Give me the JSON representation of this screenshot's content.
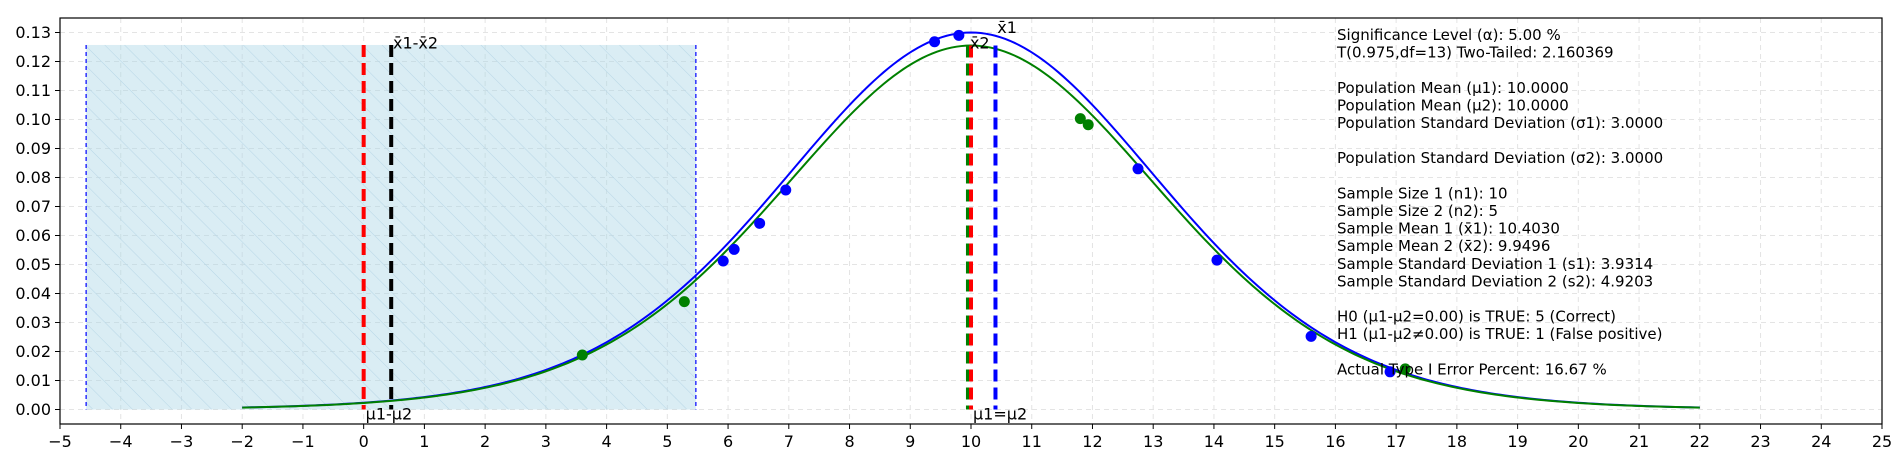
{
  "chart_data": {
    "type": "line",
    "xlim": [
      -5,
      25
    ],
    "ylim": [
      -0.005,
      0.135
    ],
    "x_ticks": [
      -5,
      -4,
      -3,
      -2,
      -1,
      0,
      1,
      2,
      3,
      4,
      5,
      6,
      7,
      8,
      9,
      10,
      11,
      12,
      13,
      14,
      15,
      16,
      17,
      18,
      19,
      20,
      21,
      22,
      23,
      24,
      25
    ],
    "y_ticks": [
      0.0,
      0.01,
      0.02,
      0.03,
      0.04,
      0.05,
      0.06,
      0.07,
      0.08,
      0.09,
      0.1,
      0.11,
      0.12,
      0.13
    ],
    "grid": true,
    "colors": {
      "series1": "#0000ff",
      "series2": "#008000",
      "region_fill": "#add8e6",
      "region_border": "#0000ff",
      "diff_line": "#000000",
      "mean_diff_line": "#ff0000",
      "mean_line": "#ff0000"
    },
    "series": [
      {
        "color": "#0000ff",
        "curve": {
          "x_start": -2,
          "x_end": 22,
          "peak_x": 10,
          "peak_y": 0.13
        },
        "points": [
          {
            "x": 9.4,
            "y": 0.1268
          },
          {
            "x": 9.8,
            "y": 0.129
          },
          {
            "x": 6.95,
            "y": 0.0757
          },
          {
            "x": 6.52,
            "y": 0.0642
          },
          {
            "x": 6.1,
            "y": 0.0552
          },
          {
            "x": 5.92,
            "y": 0.0512
          },
          {
            "x": 12.75,
            "y": 0.083
          },
          {
            "x": 14.05,
            "y": 0.0515
          },
          {
            "x": 15.6,
            "y": 0.0252
          },
          {
            "x": 16.9,
            "y": 0.013
          }
        ]
      },
      {
        "color": "#008000",
        "curve": {
          "x_start": -2,
          "x_end": 22,
          "peak_x": 10,
          "peak_y": 0.1255
        },
        "points": [
          {
            "x": 3.6,
            "y": 0.0188
          },
          {
            "x": 5.28,
            "y": 0.0372
          },
          {
            "x": 11.8,
            "y": 0.1003
          },
          {
            "x": 11.93,
            "y": 0.0982
          },
          {
            "x": 17.15,
            "y": 0.014
          }
        ]
      }
    ],
    "shaded_region": {
      "x0": -4.57,
      "x1": 5.47,
      "y1": 0.1257
    },
    "vlines": [
      {
        "x": 0.0,
        "y_top": 0.1257,
        "color": "#ff0000"
      },
      {
        "x": 0.4534,
        "y_top": 0.1257,
        "color": "#000000"
      },
      {
        "x": 9.95,
        "y_top": 0.1255,
        "color": "#008000"
      },
      {
        "x": 10.0,
        "y_top": 0.1255,
        "color": "#ff0000"
      },
      {
        "x": 10.403,
        "y_top": 0.1255,
        "color": "#0000ff"
      }
    ],
    "annotations": [
      {
        "text": "x̄1-x̄2",
        "x": 0.45,
        "y": 0.1245
      },
      {
        "text": "μ1-μ2",
        "x": 0.0,
        "y": -0.0035
      },
      {
        "text": "x̄1",
        "x": 10.4,
        "y": 0.1298
      },
      {
        "text": "x̄2",
        "x": 9.95,
        "y": 0.1245
      },
      {
        "text": "μ1=μ2",
        "x": 10.0,
        "y": -0.0035
      }
    ],
    "info_lines": [
      "Significance Level (α): 5.00 %",
      "T(0.975,df=13) Two-Tailed: 2.160369",
      "",
      "Population Mean (μ1): 10.0000",
      "Population Mean (μ2): 10.0000",
      "Population Standard Deviation (σ1): 3.0000",
      "",
      "Population Standard Deviation (σ2): 3.0000",
      "",
      "Sample Size 1 (n1): 10",
      "Sample Size 2 (n2): 5",
      "Sample Mean 1 (x̄1): 10.4030",
      "Sample Mean 2 (x̄2): 9.9496",
      "Sample Standard Deviation 1 (s1): 3.9314",
      "Sample Standard Deviation 2 (s2): 4.9203",
      "",
      "H0 (μ1-μ2=0.00) is TRUE: 5 (Correct)",
      "H1 (μ1-μ2≠0.00) is TRUE: 1 (False positive)",
      "",
      "Actual Type I Error Percent: 16.67 %"
    ]
  }
}
